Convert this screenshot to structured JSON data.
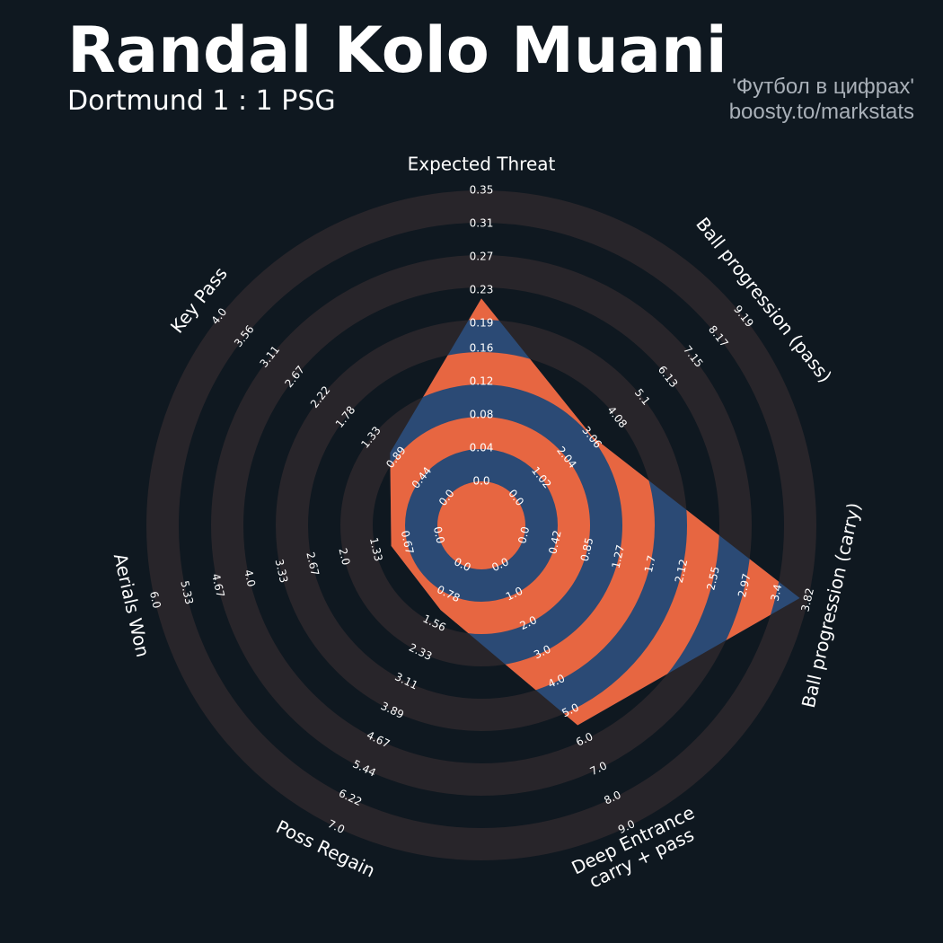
{
  "chart_data": {
    "type": "radar",
    "title": "Randal Kolo Muani",
    "subtitle": "Dortmund 1 : 1 PSG",
    "annotations": [
      "'Футбол в цифрах'",
      "boosty.to/markstats"
    ],
    "params": [
      "Expected Threat",
      "Ball progression (pass)",
      "Ball progression (carry)",
      "Deep Entrance\ncarry + pass",
      "Poss Regain",
      "Aerials Won",
      "Key Pass"
    ],
    "lims": [
      [
        0,
        0.35
      ],
      [
        0,
        9.19
      ],
      [
        0,
        3.82
      ],
      [
        0,
        9
      ],
      [
        0,
        7
      ],
      [
        0,
        6
      ],
      [
        0,
        4
      ]
    ],
    "ticks": [
      [
        {
          "value": 0,
          "label": "0.0"
        },
        0.04,
        0.08,
        0.12,
        0.16,
        0.19,
        0.23,
        0.27,
        0.31,
        0.35
      ],
      [
        {
          "value": 0,
          "label": "0.0"
        },
        1.02,
        2.04,
        3.06,
        4.08,
        5.1,
        6.13,
        7.15,
        8.17,
        9.19
      ],
      [
        {
          "value": 0,
          "label": "0.0"
        },
        0.42,
        0.85,
        1.27,
        1.7,
        2.12,
        2.55,
        2.97,
        3.4,
        3.82
      ],
      [
        {
          "value": 0,
          "label": "0.0"
        },
        {
          "value": 1,
          "label": "1.0"
        },
        {
          "value": 2,
          "label": "2.0"
        },
        {
          "value": 3,
          "label": "3.0"
        },
        {
          "value": 4,
          "label": "4.0"
        },
        {
          "value": 5,
          "label": "5.0"
        },
        {
          "value": 6,
          "label": "6.0"
        },
        {
          "value": 7,
          "label": "7.0"
        },
        {
          "value": 8,
          "label": "8.0"
        },
        {
          "value": 9,
          "label": "9.0"
        }
      ],
      [
        {
          "value": 0,
          "label": "0.0"
        },
        0.78,
        1.56,
        2.33,
        3.11,
        3.89,
        4.67,
        5.44,
        6.22,
        {
          "value": 7,
          "label": "7.0"
        }
      ],
      [
        {
          "value": 0,
          "label": "0.0"
        },
        0.67,
        1.33,
        {
          "value": 2,
          "label": "2.0"
        },
        2.67,
        3.33,
        {
          "value": 4,
          "label": "4.0"
        },
        4.67,
        5.33,
        {
          "value": 6,
          "label": "6.0"
        }
      ],
      [
        {
          "value": 0,
          "label": "0.0"
        },
        0.44,
        0.89,
        1.33,
        1.78,
        2.22,
        2.67,
        3.11,
        3.56,
        {
          "value": 4,
          "label": "4.0"
        }
      ]
    ],
    "values": [
      0.22,
      3.1,
      3.71,
      5.5,
      1.2,
      1.0,
      1.0
    ],
    "color": "#2b4a75",
    "ring_color": "#e76641",
    "background_ring_color": "#28252a"
  }
}
